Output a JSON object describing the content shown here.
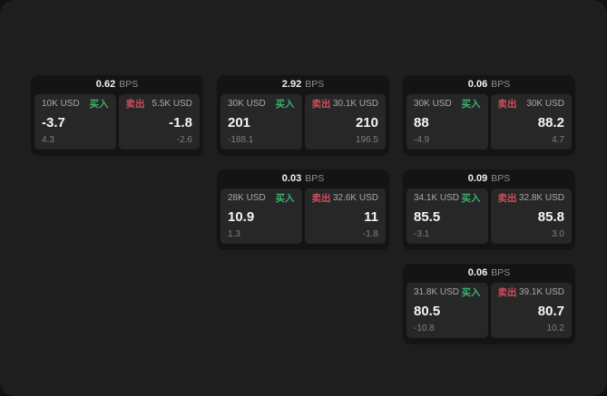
{
  "labels": {
    "buy": "买入",
    "sell": "卖出",
    "bps_suffix": "BPS"
  },
  "colors": {
    "buy": "#3fae6e",
    "sell": "#cc4f5e",
    "window_bg": "#1e1e1e",
    "card_bg": "#141414",
    "panel_bg": "#272727"
  },
  "cards": [
    {
      "grid": {
        "row": 1,
        "col": 1
      },
      "bps": "0.62",
      "buy": {
        "amount": "10K USD",
        "value": "-3.7",
        "change": "4.3"
      },
      "sell": {
        "amount": "5.5K USD",
        "value": "-1.8",
        "change": "-2.6"
      }
    },
    {
      "grid": {
        "row": 1,
        "col": 2
      },
      "bps": "2.92",
      "buy": {
        "amount": "30K USD",
        "value": "201",
        "change": "-188.1"
      },
      "sell": {
        "amount": "30.1K USD",
        "value": "210",
        "change": "196.5"
      }
    },
    {
      "grid": {
        "row": 1,
        "col": 3
      },
      "bps": "0.06",
      "buy": {
        "amount": "30K USD",
        "value": "88",
        "change": "-4.9"
      },
      "sell": {
        "amount": "30K USD",
        "value": "88.2",
        "change": "4.7"
      }
    },
    {
      "grid": {
        "row": 2,
        "col": 2
      },
      "bps": "0.03",
      "buy": {
        "amount": "28K USD",
        "value": "10.9",
        "change": "1.3"
      },
      "sell": {
        "amount": "32.6K USD",
        "value": "11",
        "change": "-1.8"
      }
    },
    {
      "grid": {
        "row": 2,
        "col": 3
      },
      "bps": "0.09",
      "buy": {
        "amount": "34.1K USD",
        "value": "85.5",
        "change": "-3.1"
      },
      "sell": {
        "amount": "32.8K USD",
        "value": "85.8",
        "change": "3.0"
      }
    },
    {
      "grid": {
        "row": 3,
        "col": 3
      },
      "bps": "0.06",
      "buy": {
        "amount": "31.8K USD",
        "value": "80.5",
        "change": "-10.8"
      },
      "sell": {
        "amount": "39.1K USD",
        "value": "80.7",
        "change": "10.2"
      }
    }
  ]
}
